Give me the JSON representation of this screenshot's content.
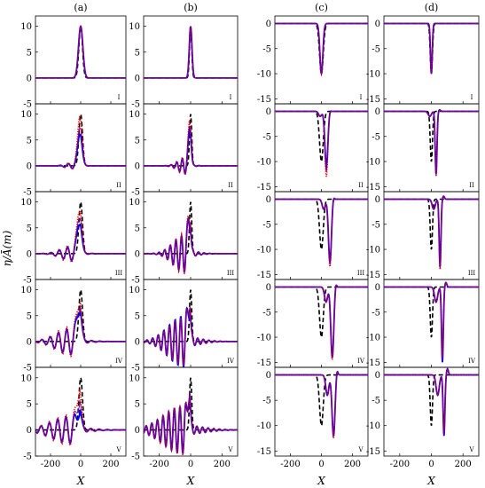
{
  "figure": {
    "column_labels": [
      "(a)",
      "(b)",
      "(c)",
      "(d)"
    ],
    "row_labels": [
      "I",
      "II",
      "III",
      "IV",
      "V"
    ],
    "ylabel": "η/Ā(m)",
    "xlabel": "X"
  },
  "chart_data": [
    {
      "type": "line",
      "panel_grid": "4 columns x 5 rows",
      "xlabel": "X",
      "ylabel": "η/Ā(m)",
      "xlim": [
        -300,
        300
      ],
      "x_ticks": [
        "-200",
        "0",
        "200"
      ],
      "grid": false,
      "series_styles": [
        {
          "color": "#000000",
          "dash": "dashed",
          "role": "initial profile"
        },
        {
          "color": "#0000ff",
          "dash": "solid"
        },
        {
          "color": "#ff0000",
          "dash": "dotted"
        },
        {
          "color": "#800080",
          "dash": "solid-thin"
        }
      ],
      "columns": [
        {
          "label": "(a)",
          "ylim": [
            -5,
            12
          ],
          "y_ticks": [
            "-5",
            "0",
            "5",
            "10"
          ],
          "rows": [
            {
              "label": "I",
              "peak_x": 0,
              "peak_values": {
                "black": 10,
                "blue": 10,
                "red": 10,
                "purple": 10
              },
              "trough_x": null,
              "trough_values": null
            },
            {
              "label": "II",
              "peak_x": -5,
              "peak_values": {
                "black": 10,
                "blue": 6.3,
                "red": 9.8,
                "purple": 7.6
              },
              "trough_x": -55,
              "trough_values": {
                "blue": -0.5,
                "red": -0.7
              }
            },
            {
              "label": "III",
              "peak_x": -8,
              "peak_values": {
                "black": 10,
                "blue": 6.5,
                "red": 9.2,
                "purple": 7.8
              },
              "trough_x": -60,
              "trough_values": {
                "blue": -1.3,
                "red": -1.7
              }
            },
            {
              "label": "IV",
              "peak_x": -10,
              "peak_values": {
                "black": 10,
                "blue": 7.2,
                "red": 8.9,
                "purple": 8.0
              },
              "trough_x": -65,
              "trough_values": {
                "blue": -2.4,
                "red": -2.9
              }
            },
            {
              "label": "V",
              "peak_x": -12,
              "peak_values": {
                "black": 10,
                "blue": 4.5,
                "red": 8.8,
                "purple": 6.5
              },
              "trough_x": -70,
              "trough_values": {
                "blue": -2.5,
                "red": -3.0
              }
            }
          ]
        },
        {
          "label": "(b)",
          "ylim": [
            -5,
            12
          ],
          "y_ticks": [
            "-5",
            "0",
            "5",
            "10"
          ],
          "rows": [
            {
              "label": "I",
              "peak_x": 0,
              "peak_values": {
                "black": 10,
                "blue": 10,
                "red": 10,
                "purple": 10
              },
              "trough_x": null,
              "trough_values": null
            },
            {
              "label": "II",
              "peak_x": -5,
              "peak_values": {
                "black": 10,
                "blue": 7.6,
                "red": 9.3,
                "purple": 8.2
              },
              "trough_x": -35,
              "trough_values": {
                "blue": -1.5,
                "red": -1.8
              }
            },
            {
              "label": "III",
              "peak_x": -8,
              "peak_values": {
                "black": 10,
                "blue": 7.8,
                "red": 8.6,
                "purple": 8.2
              },
              "trough_x": -40,
              "trough_values": {
                "blue": -3.5,
                "red": -3.9
              }
            },
            {
              "label": "IV",
              "peak_x": -10,
              "peak_values": {
                "black": 10,
                "blue": 9.0,
                "red": 9.3,
                "purple": 9.1
              },
              "trough_x": -45,
              "trough_values": {
                "blue": -4.9,
                "red": -4.5
              }
            },
            {
              "label": "V",
              "peak_x": -12,
              "peak_values": {
                "black": 10,
                "blue": 9.0,
                "red": 9.2,
                "purple": 9.1
              },
              "trough_x": -50,
              "trough_values": {
                "blue": -4.5,
                "red": -4.8
              }
            }
          ]
        },
        {
          "label": "(c)",
          "ylim": [
            -16,
            1.5
          ],
          "y_ticks": [
            "-15",
            "-10",
            "-5",
            "0"
          ],
          "rows": [
            {
              "label": "I",
              "trough_black_x": 0,
              "trough_values": {
                "black": -10,
                "blue": -10,
                "red": -10,
                "purple": -10
              },
              "shifted_trough_x": 0
            },
            {
              "label": "II",
              "trough_black_x": 0,
              "trough_values": {
                "black": -10,
                "blue": -11,
                "red": -13,
                "purple": -12
              },
              "shifted_trough_x": 32
            },
            {
              "label": "III",
              "trough_black_x": 0,
              "trough_values": {
                "black": -10,
                "blue": -12.5,
                "red": -13.5,
                "purple": -13
              },
              "shifted_trough_x": 55
            },
            {
              "label": "IV",
              "trough_black_x": 0,
              "trough_values": {
                "black": -10,
                "blue": -14,
                "red": -14.5,
                "purple": -14.2
              },
              "shifted_trough_x": 70
            },
            {
              "label": "V",
              "trough_black_x": 0,
              "trough_values": {
                "black": -10,
                "blue": -12,
                "red": -12.5,
                "purple": -12.2
              },
              "shifted_trough_x": 78
            }
          ]
        },
        {
          "label": "(d)",
          "ylim": [
            -16,
            1.5
          ],
          "y_ticks": [
            "-15",
            "-10",
            "-5",
            "0"
          ],
          "rows": [
            {
              "label": "I",
              "trough_black_x": 0,
              "trough_values": {
                "black": -10,
                "blue": -10,
                "red": -10,
                "purple": -10
              },
              "shifted_trough_x": 0
            },
            {
              "label": "II",
              "trough_black_x": 0,
              "trough_values": {
                "black": -10,
                "blue": -12.5,
                "red": -13,
                "purple": -12.8
              },
              "shifted_trough_x": 30
            },
            {
              "label": "III",
              "trough_black_x": 0,
              "trough_values": {
                "black": -10,
                "blue": -13.5,
                "red": -14,
                "purple": -13.8
              },
              "shifted_trough_x": 55
            },
            {
              "label": "IV",
              "trough_black_x": 0,
              "trough_values": {
                "black": -10,
                "blue": -15,
                "red": -14,
                "purple": -14.5
              },
              "shifted_trough_x": 70
            },
            {
              "label": "V",
              "trough_black_x": 0,
              "trough_values": {
                "black": -10,
                "blue": -12,
                "red": -11.5,
                "purple": -11.8
              },
              "shifted_trough_x": 80
            }
          ]
        }
      ]
    }
  ]
}
